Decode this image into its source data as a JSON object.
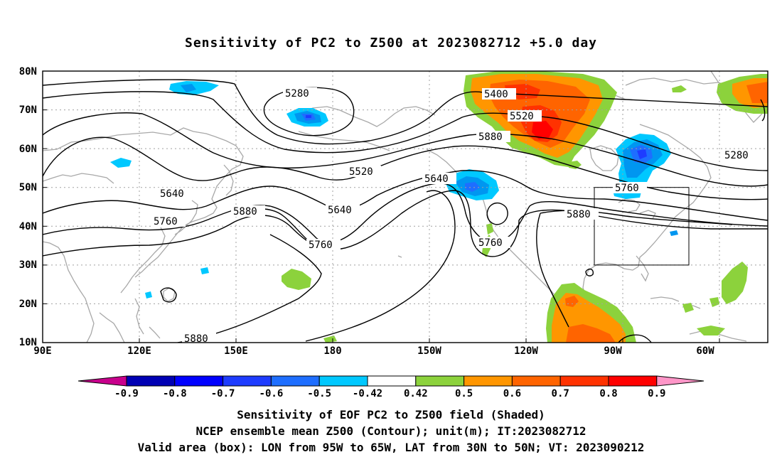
{
  "title": "Sensitivity of PC2 to Z500 at 2023082712 +5.0 day",
  "map": {
    "lat_labels": [
      "80N",
      "70N",
      "60N",
      "50N",
      "40N",
      "30N",
      "20N",
      "10N"
    ],
    "lon_labels": [
      "90E",
      "120E",
      "150E",
      "180",
      "150W",
      "120W",
      "90W",
      "60W"
    ],
    "contour_labels": [
      {
        "id": "c5280a",
        "text": "5280"
      },
      {
        "id": "c5400",
        "text": "5400"
      },
      {
        "id": "c5520a",
        "text": "5520"
      },
      {
        "id": "c5640a",
        "text": "5640"
      },
      {
        "id": "c5520b",
        "text": "5520"
      },
      {
        "id": "c5880a",
        "text": "5880"
      },
      {
        "id": "c5280b",
        "text": "5280"
      },
      {
        "id": "c5640b",
        "text": "5640"
      },
      {
        "id": "c5640c",
        "text": "5640"
      },
      {
        "id": "c5760a",
        "text": "5760"
      },
      {
        "id": "c5880b",
        "text": "5880"
      },
      {
        "id": "c5760b",
        "text": "5760"
      },
      {
        "id": "c5760c",
        "text": "5760"
      },
      {
        "id": "c5880c",
        "text": "5880"
      },
      {
        "id": "c5760d",
        "text": "5760"
      },
      {
        "id": "c5880d",
        "text": "5880"
      }
    ],
    "valid_box": {
      "lon_from": "95W",
      "lon_to": "65W",
      "lat_from": "30N",
      "lat_to": "50N"
    }
  },
  "colorbar": {
    "labels": [
      "-0.9",
      "-0.8",
      "-0.7",
      "-0.6",
      "-0.5",
      "-0.42",
      "0.42",
      "0.5",
      "0.6",
      "0.7",
      "0.8",
      "0.9"
    ],
    "colors": [
      "#c8008c",
      "#0000b4",
      "#0000ff",
      "#1e3cff",
      "#1e6eff",
      "#0096f0",
      "#00c8ff",
      "#ffffff",
      "#8cd23c",
      "#ff9600",
      "#ff6400",
      "#ff3200",
      "#ff0000",
      "#ff96c8"
    ]
  },
  "captions": {
    "line1": "Sensitivity of EOF PC2 to Z500 field (Shaded)",
    "line2": "NCEP ensemble mean Z500 (Contour); unit(m); IT:2023082712",
    "line3": "Valid area (box): LON from 95W to 65W, LAT from 30N to 50N; VT: 2023090212"
  }
}
